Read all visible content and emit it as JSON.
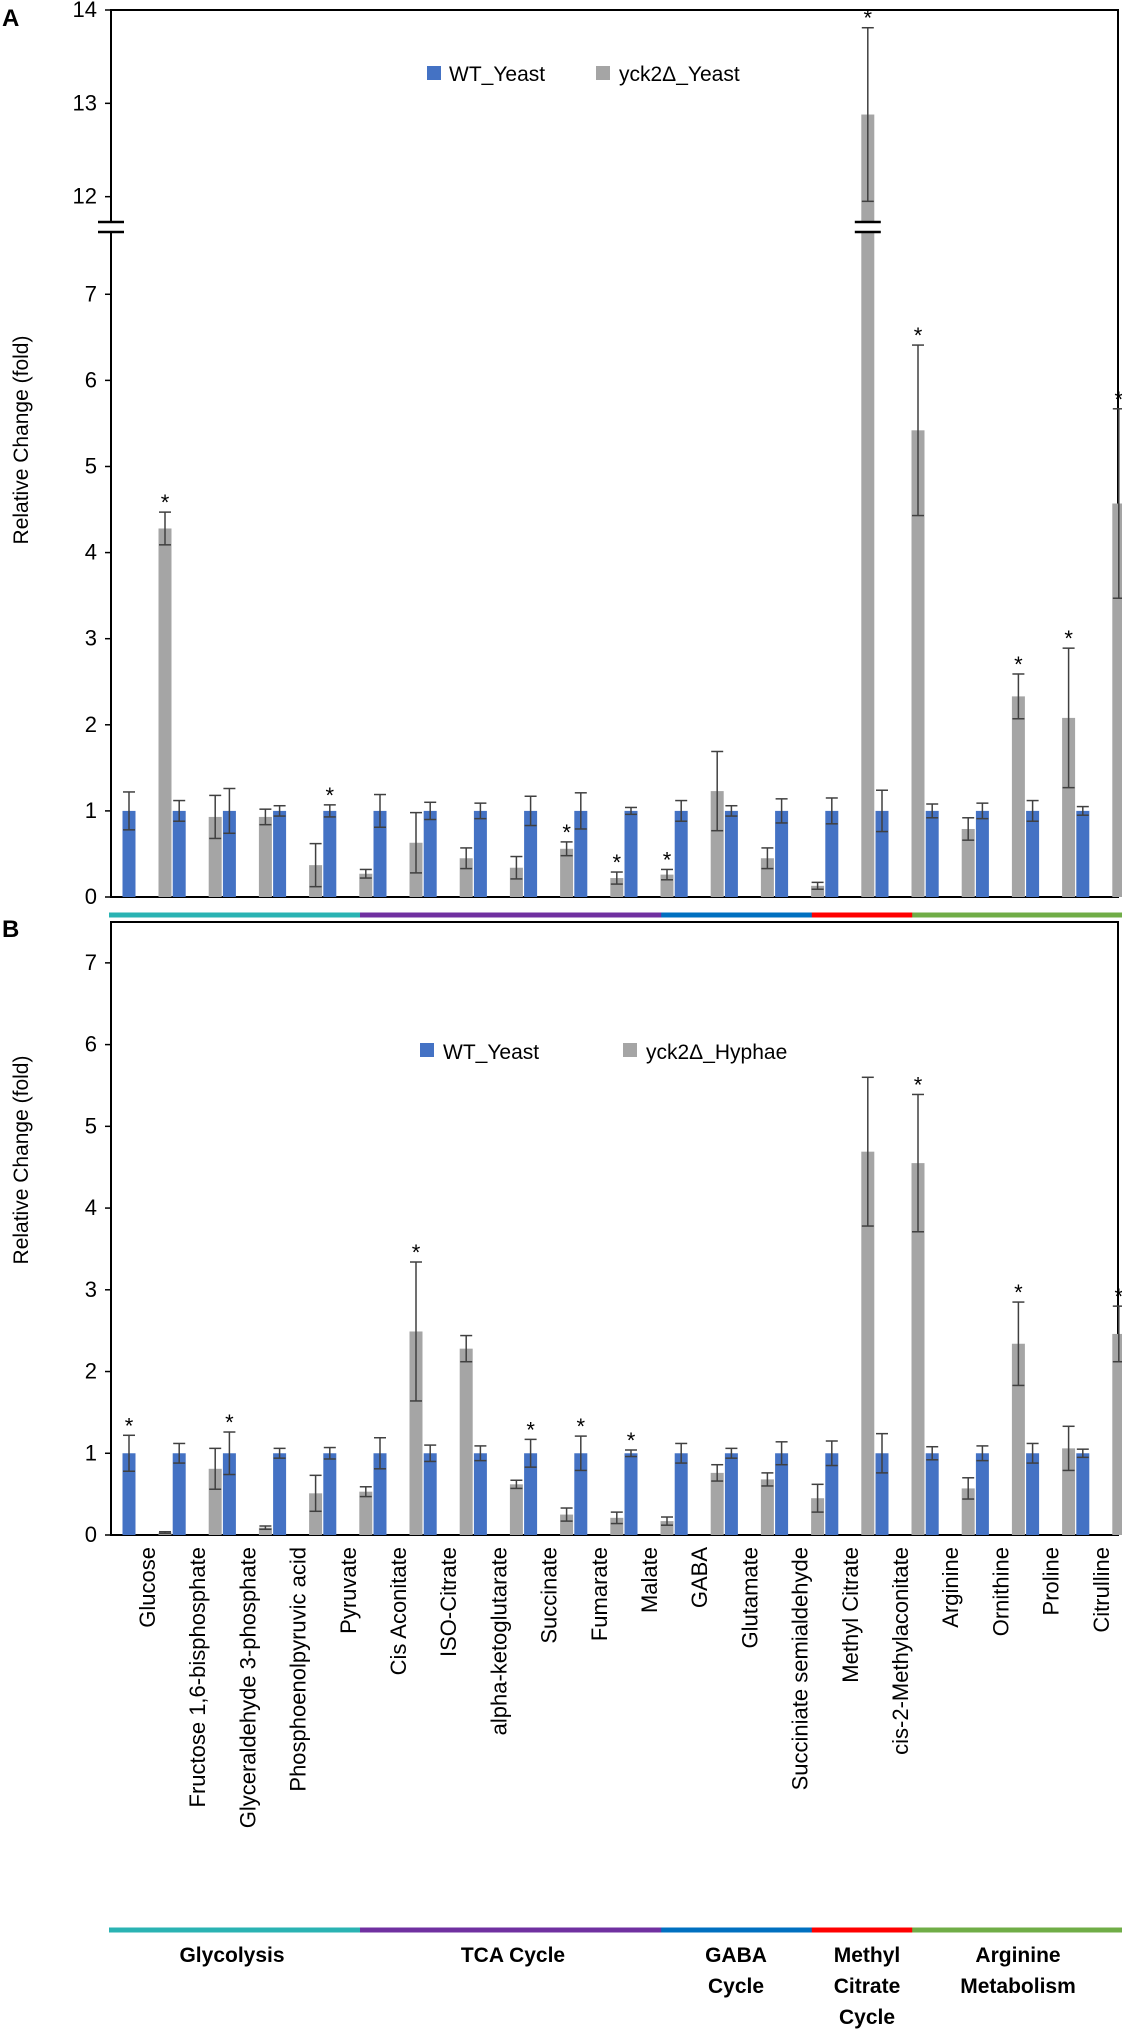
{
  "chart_data": [
    {
      "type": "bar",
      "panel_label": "A",
      "ylabel": "Relative Change (fold)",
      "xlabel": "",
      "y_axis": {
        "broken": true,
        "lower_range": [
          0,
          7.7
        ],
        "lower_ticks": [
          "0",
          "1",
          "2",
          "3",
          "4",
          "5",
          "6",
          "7"
        ],
        "upper_range": [
          11.6,
          14
        ],
        "upper_ticks": [
          "12",
          "13",
          "14"
        ]
      },
      "legend": {
        "position": "top-center",
        "entries": [
          "WT_Yeast",
          "yck2Δ_Yeast"
        ]
      },
      "categories": [
        "Glucose",
        "Fructose 1,6-bisphosphate",
        "Glyceraldehyde 3-phosphate",
        "Phosphoenolpyruvic acid",
        "Pyruvate",
        "Cis Aconitate",
        "ISO-Citrate",
        "alpha-ketoglutarate",
        "Succinate",
        "Fumarate",
        "Malate",
        "GABA",
        "Glutamate",
        "Succiniate semialdehyde",
        "Methyl Citrate",
        "cis-2-Methylaconitate",
        "Arginine",
        "Ornithine",
        "Proline",
        "Citrulline"
      ],
      "series": [
        {
          "name": "WT_Yeast",
          "color": "#4472c4",
          "values": [
            1,
            1,
            1,
            1,
            1,
            1,
            1,
            1,
            1,
            1,
            1,
            1,
            1,
            1,
            1,
            1,
            1,
            1,
            1,
            1
          ],
          "errors": [
            0.22,
            0.12,
            0.26,
            0.06,
            0.07,
            0.19,
            0.1,
            0.09,
            0.17,
            0.21,
            0.04,
            0.12,
            0.06,
            0.14,
            0.15,
            0.24,
            0.08,
            0.09,
            0.12,
            0.05
          ]
        },
        {
          "name": "yck2Δ_Yeast",
          "color": "#a5a5a5",
          "values": [
            4.28,
            0.93,
            0.93,
            0.37,
            0.27,
            0.63,
            0.45,
            0.34,
            0.56,
            0.22,
            0.26,
            1.23,
            0.45,
            0.13,
            12.88,
            5.42,
            0.79,
            2.33,
            2.08,
            4.57
          ],
          "errors": [
            0.19,
            0.25,
            0.09,
            0.25,
            0.05,
            0.35,
            0.12,
            0.13,
            0.08,
            0.07,
            0.06,
            0.46,
            0.12,
            0.04,
            0.93,
            0.99,
            0.13,
            0.26,
            0.81,
            1.1
          ]
        }
      ],
      "significance": {
        "WT_Yeast": [
          4
        ],
        "yck2Δ_Yeast": [
          0,
          8,
          9,
          10,
          14,
          15,
          17,
          18,
          19
        ]
      },
      "groups": [
        {
          "name": "Glycolysis",
          "start": 0,
          "end": 4,
          "color": "#2ab3b3"
        },
        {
          "name": "TCA Cycle",
          "start": 5,
          "end": 10,
          "color": "#7030a0"
        },
        {
          "name": "GABA Cycle",
          "start": 11,
          "end": 13,
          "color": "#0070c0"
        },
        {
          "name": "Methyl Citrate Cycle",
          "start": 14,
          "end": 15,
          "color": "#ff0000"
        },
        {
          "name": "Arginine Metabolism",
          "start": 16,
          "end": 19,
          "color": "#70ad47"
        }
      ]
    },
    {
      "type": "bar",
      "panel_label": "B",
      "ylabel": "Relative Change (fold)",
      "xlabel": "",
      "ylim": [
        0,
        7.5
      ],
      "y_ticks": [
        "0",
        "1",
        "2",
        "3",
        "4",
        "5",
        "6",
        "7"
      ],
      "legend": {
        "position": "top-center",
        "entries": [
          "WT_Yeast",
          "yck2Δ_Hyphae"
        ]
      },
      "categories": [
        "Glucose",
        "Fructose 1,6-bisphosphate",
        "Glyceraldehyde 3-phosphate",
        "Phosphoenolpyruvic acid",
        "Pyruvate",
        "Cis Aconitate",
        "ISO-Citrate",
        "alpha-ketoglutarate",
        "Succinate",
        "Fumarate",
        "Malate",
        "GABA",
        "Glutamate",
        "Succiniate semialdehyde",
        "Methyl Citrate",
        "cis-2-Methylaconitate",
        "Arginine",
        "Ornithine",
        "Proline",
        "Citrulline"
      ],
      "series": [
        {
          "name": "WT_Yeast",
          "color": "#4472c4",
          "values": [
            1,
            1,
            1,
            1,
            1,
            1,
            1,
            1,
            1,
            1,
            1,
            1,
            1,
            1,
            1,
            1,
            1,
            1,
            1,
            1
          ],
          "errors": [
            0.22,
            0.12,
            0.26,
            0.06,
            0.07,
            0.19,
            0.1,
            0.09,
            0.17,
            0.21,
            0.04,
            0.12,
            0.06,
            0.14,
            0.15,
            0.24,
            0.08,
            0.09,
            0.12,
            0.05
          ]
        },
        {
          "name": "yck2Δ_Hyphae",
          "color": "#a5a5a5",
          "values": [
            0.03,
            0.81,
            0.09,
            0.51,
            0.53,
            2.49,
            2.28,
            0.62,
            0.25,
            0.21,
            0.17,
            0.76,
            0.68,
            0.45,
            4.69,
            4.55,
            0.57,
            2.34,
            1.06,
            2.46
          ],
          "errors": [
            0.01,
            0.25,
            0.02,
            0.22,
            0.06,
            0.85,
            0.16,
            0.05,
            0.08,
            0.07,
            0.05,
            0.1,
            0.08,
            0.17,
            0.91,
            0.84,
            0.13,
            0.51,
            0.27,
            0.34
          ]
        }
      ],
      "significance": {
        "WT_Yeast": [
          0,
          2,
          8,
          9,
          10
        ],
        "yck2Δ_Hyphae": [
          5,
          15,
          17,
          19
        ]
      },
      "groups": [
        {
          "name": "Glycolysis",
          "start": 0,
          "end": 4,
          "color": "#2ab3b3"
        },
        {
          "name": "TCA Cycle",
          "start": 5,
          "end": 10,
          "color": "#7030a0"
        },
        {
          "name": "GABA Cycle",
          "start": 11,
          "end": 13,
          "color": "#0070c0"
        },
        {
          "name": "Methyl Citrate Cycle",
          "start": 14,
          "end": 15,
          "color": "#ff0000"
        },
        {
          "name": "Arginine Metabolism",
          "start": 16,
          "end": 19,
          "color": "#70ad47"
        }
      ]
    }
  ],
  "star_symbol": "*",
  "group_labels": {
    "glycolysis": [
      "Glycolysis"
    ],
    "tca": [
      "TCA Cycle"
    ],
    "gaba": [
      "GABA",
      "Cycle"
    ],
    "methyl": [
      "Methyl",
      "Citrate",
      "Cycle"
    ],
    "arginine": [
      "Arginine",
      "Metabolism"
    ]
  }
}
